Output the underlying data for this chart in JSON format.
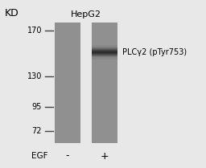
{
  "background_color": "#e8e8e8",
  "lane_color": "#909090",
  "band_color": "#2a2a2a",
  "tick_line_color": "#444444",
  "text_color": "#000000",
  "title_text": "HepG2",
  "kd_label": "KD",
  "egf_label": "EGF",
  "lane1_label": "-",
  "lane2_label": "+",
  "antibody_label": "PLCγ2 (pTyr753)",
  "mw_markers": [
    170,
    130,
    95,
    72
  ],
  "fig_width": 2.56,
  "fig_height": 2.09,
  "dpi": 100
}
